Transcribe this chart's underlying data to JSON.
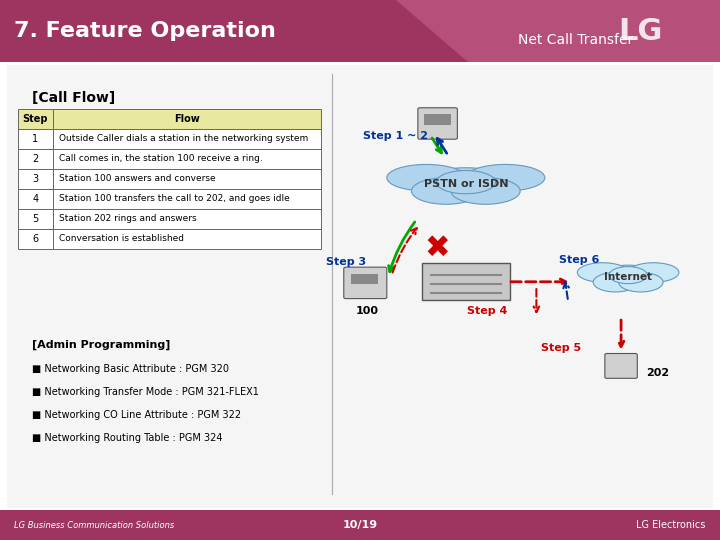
{
  "title": "7. Feature Operation",
  "subtitle": "Net Call Transfer",
  "header_color": "#9e3560",
  "header_text_color": "#ffffff",
  "bg_color": "#ffffff",
  "footer_bg": "#9e3560",
  "footer_left": "LG Business Communication Solutions",
  "footer_right": "LG Electronics",
  "footer_center": "10/19",
  "call_flow_title": "[Call Flow]",
  "table_headers": [
    "Step",
    "Flow"
  ],
  "table_rows": [
    [
      "1",
      "Outside Caller dials a station in the networking system"
    ],
    [
      "2",
      "Call comes in, the station 100 receive a ring."
    ],
    [
      "3",
      "Station 100 answers and converse"
    ],
    [
      "4",
      "Station 100 transfers the call to 202, and goes idle"
    ],
    [
      "5",
      "Station 202 rings and answers"
    ],
    [
      "6",
      "Conversation is established"
    ]
  ],
  "admin_title": "[Admin Programming]",
  "admin_items": [
    "Networking Basic Attribute : PGM 320",
    "Networking Transfer Mode : PGM 321-FLEX1",
    "Networking CO Line Attribute : PGM 322",
    "Networking Routing Table : PGM 324"
  ],
  "label_step12": "Step 1 ~ 2",
  "label_step3": "Step 3",
  "label_step4": "Step 4",
  "label_step5": "Step 5",
  "label_step6": "Step 6",
  "label_pstn": "PSTN or ISDN",
  "label_internet": "Internet",
  "label_100": "100",
  "label_202": "202"
}
